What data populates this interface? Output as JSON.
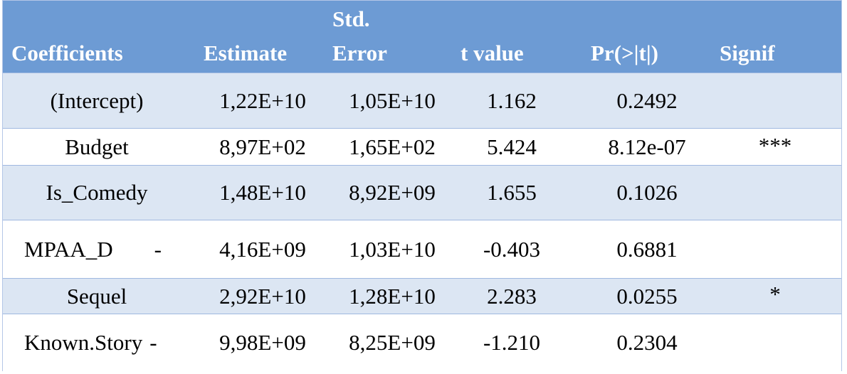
{
  "table": {
    "headers": {
      "coefficients": "Coefficients",
      "estimate": "Estimate",
      "std_error_line1": "Std.",
      "std_error_line2": "Error",
      "t_value": "t value",
      "pr": "Pr(>|t|)",
      "signif": "Signif"
    },
    "rows": [
      {
        "name": "(Intercept)",
        "name_suffix": "",
        "estimate": "1,22E+10",
        "std_error": "1,05E+10",
        "t_value": "1.162",
        "pr": "0.2492",
        "signif": ""
      },
      {
        "name": "Budget",
        "name_suffix": "",
        "estimate": "8,97E+02",
        "std_error": "1,65E+02",
        "t_value": "5.424",
        "pr": "8.12e-07",
        "signif": "***"
      },
      {
        "name": "Is_Comedy",
        "name_suffix": "",
        "estimate": "1,48E+10",
        "std_error": "8,92E+09",
        "t_value": "1.655",
        "pr": "0.1026",
        "signif": ""
      },
      {
        "name": "MPAA_D",
        "name_suffix": "-",
        "estimate": "4,16E+09",
        "std_error": "1,03E+10",
        "t_value": "-0.403",
        "pr": "0.6881",
        "signif": ""
      },
      {
        "name": "Sequel",
        "name_suffix": "",
        "estimate": "2,92E+10",
        "std_error": "1,28E+10",
        "t_value": "2.283",
        "pr": "0.0255",
        "signif": "*"
      },
      {
        "name": "Known.Story",
        "name_suffix": "-",
        "estimate": "9,98E+09",
        "std_error": "8,25E+09",
        "t_value": "-1.210",
        "pr": "0.2304",
        "signif": ""
      }
    ]
  },
  "colors": {
    "header_bg": "#6d9bd4",
    "header_text": "#ffffff",
    "band_shaded": "#dce6f3",
    "band_plain": "#ffffff",
    "border": "#b4c6e7"
  }
}
